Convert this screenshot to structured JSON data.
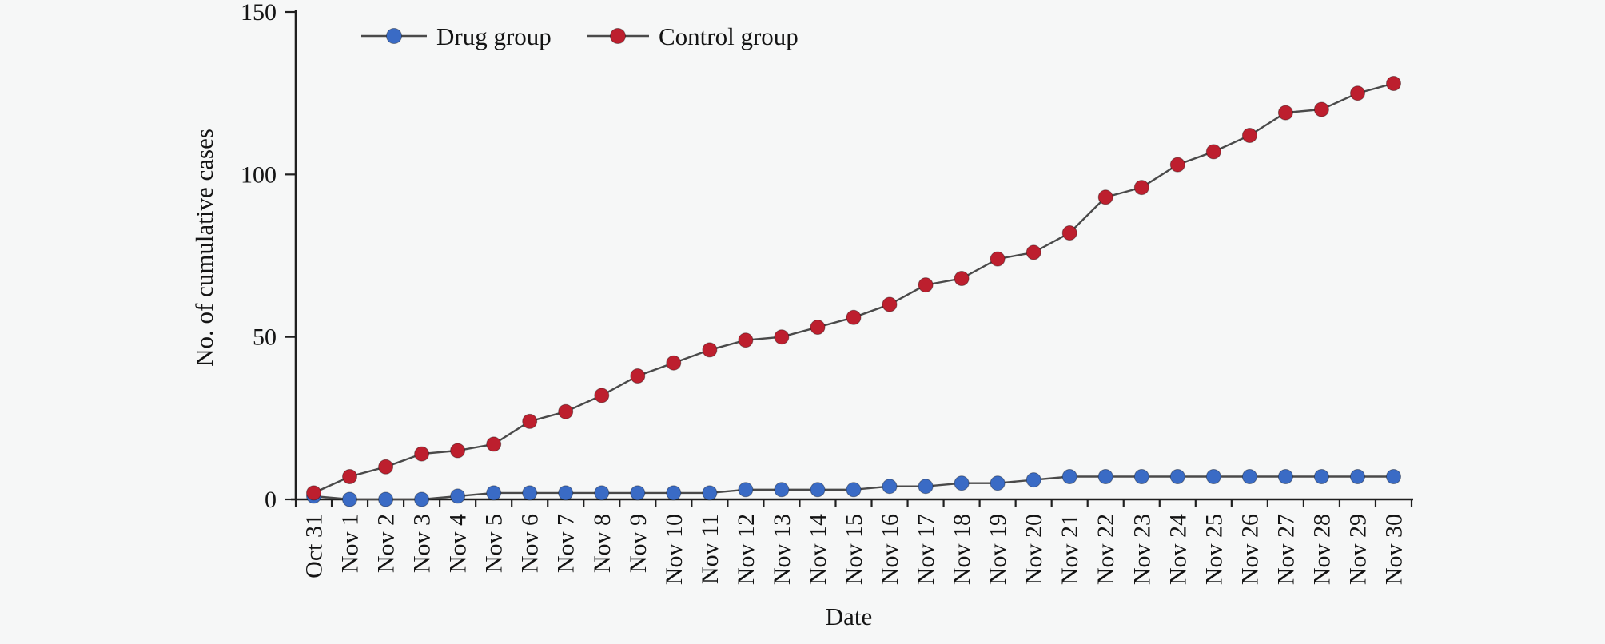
{
  "figure": {
    "background": "#f6f7f7",
    "axis_color": "#1f1f1f",
    "connector_line_color": "#4a4a4a"
  },
  "chart_data": {
    "type": "line",
    "title": "",
    "xlabel": "Date",
    "ylabel": "No. of cumulative cases",
    "legend_position": "top",
    "grid": false,
    "ylim": [
      0,
      150
    ],
    "yticks": [
      0,
      50,
      100,
      150
    ],
    "categories": [
      "Oct 31",
      "Nov 1",
      "Nov 2",
      "Nov 3",
      "Nov 4",
      "Nov 5",
      "Nov 6",
      "Nov 7",
      "Nov 8",
      "Nov 9",
      "Nov 10",
      "Nov 11",
      "Nov 12",
      "Nov 13",
      "Nov 14",
      "Nov 15",
      "Nov 16",
      "Nov 17",
      "Nov 18",
      "Nov 19",
      "Nov 20",
      "Nov 21",
      "Nov 22",
      "Nov 23",
      "Nov 24",
      "Nov 25",
      "Nov 26",
      "Nov 27",
      "Nov 28",
      "Nov 29",
      "Nov 30"
    ],
    "series": [
      {
        "name": "Drug group",
        "color": "#3a6bc5",
        "values": [
          1,
          0,
          0,
          0,
          1,
          2,
          2,
          2,
          2,
          2,
          2,
          2,
          3,
          3,
          3,
          3,
          4,
          4,
          5,
          5,
          6,
          7,
          7,
          7,
          7,
          7,
          7,
          7,
          7,
          7,
          7
        ]
      },
      {
        "name": "Control group",
        "color": "#bd1f2e",
        "values": [
          2,
          7,
          10,
          14,
          15,
          17,
          24,
          27,
          32,
          38,
          42,
          46,
          49,
          50,
          53,
          56,
          60,
          66,
          68,
          74,
          76,
          82,
          93,
          96,
          103,
          107,
          112,
          119,
          120,
          125,
          128
        ]
      }
    ]
  }
}
